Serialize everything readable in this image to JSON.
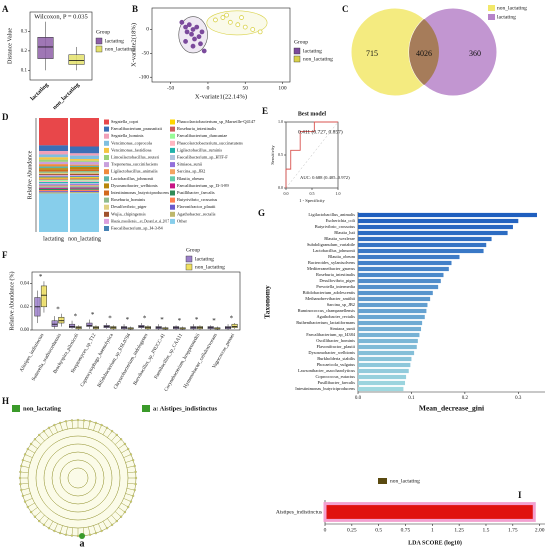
{
  "chart_data": [
    {
      "panel": "A",
      "type": "box",
      "annotation": "Wilcoxon, P = 0.035",
      "ylabel": "Distance Value",
      "legend_title": "Group",
      "categories": [
        "lactating",
        "non_lactating"
      ],
      "dodge": false,
      "ylim": [
        0.05,
        0.4
      ],
      "yticks": [
        0.1,
        0.2,
        0.3
      ],
      "series": [
        {
          "name": "lactating",
          "color": "#8e5fa8",
          "low": [
            0.1,
            null
          ],
          "q1": [
            0.16,
            null
          ],
          "median": [
            0.22,
            null
          ],
          "q3": [
            0.27,
            null
          ],
          "high": [
            0.35,
            null
          ]
        },
        {
          "name": "non_lactating",
          "color": "#e3e06a",
          "low": [
            null,
            0.1
          ],
          "q1": [
            null,
            0.13
          ],
          "median": [
            null,
            0.15
          ],
          "q3": [
            null,
            0.18
          ],
          "high": [
            null,
            0.22
          ]
        }
      ]
    },
    {
      "panel": "B",
      "type": "scatter",
      "xlabel": "X-variate1(22.14%)",
      "ylabel": "X-variate2(18%)",
      "legend_title": "Group",
      "xlim": [
        -75,
        110
      ],
      "ylim": [
        -110,
        45
      ],
      "xticks": [
        -50,
        0,
        50,
        100
      ],
      "yticks": [
        -100,
        -50,
        0
      ],
      "series": [
        {
          "name": "lactating",
          "color": "#7b4a9c",
          "x": [
            -35,
            -30,
            -28,
            -25,
            -22,
            -20,
            -18,
            -15,
            -12,
            -10,
            -8,
            -5,
            -30,
            -20
          ],
          "y": [
            15,
            5,
            -5,
            10,
            -10,
            0,
            -20,
            5,
            -15,
            -30,
            -5,
            -45,
            -25,
            -35
          ]
        },
        {
          "name": "non_lactating",
          "color": "#d9d24a",
          "x": [
            10,
            20,
            30,
            40,
            50,
            60,
            70,
            25,
            45
          ],
          "y": [
            20,
            25,
            15,
            10,
            5,
            0,
            -5,
            30,
            25
          ]
        }
      ]
    },
    {
      "panel": "C",
      "type": "venn",
      "sets": [
        {
          "name": "non_lactating",
          "color": "#f2e86a"
        },
        {
          "name": "lactating",
          "color": "#b784c9"
        }
      ],
      "values": [
        715,
        4026,
        360
      ]
    },
    {
      "panel": "D",
      "type": "stacked_bar",
      "ylabel": "Relative Abundance",
      "categories": [
        "lactating",
        "non_lactating"
      ],
      "ylim": [
        0,
        100
      ],
      "series": [
        {
          "name": "Segatella_copri",
          "color": "#e8474a",
          "values": [
            24,
            25
          ]
        },
        {
          "name": "Faecalibacterium_prausnitzii",
          "color": "#3b6fb6",
          "values": [
            5,
            6
          ]
        },
        {
          "name": "Segatella_hominis",
          "color": "#f0a0b8",
          "values": [
            3,
            2
          ]
        },
        {
          "name": "Vencimonas_coprocola",
          "color": "#7fbfe0",
          "values": [
            2.5,
            3
          ]
        },
        {
          "name": "Vencimonas_fastidiosa",
          "color": "#f5c542",
          "values": [
            2,
            1.5
          ]
        },
        {
          "name": "Limosilactobacillus_reuteri",
          "color": "#9cd17a",
          "values": [
            2,
            1
          ]
        },
        {
          "name": "Treponema_succinifaciens",
          "color": "#c9a0dc",
          "values": [
            2,
            2.5
          ]
        },
        {
          "name": "Ligilactobacillus_animalis",
          "color": "#f08a3c",
          "values": [
            2,
            1
          ]
        },
        {
          "name": "Lactobacillus_johnsonii",
          "color": "#5ab4ac",
          "values": [
            1.5,
            1
          ]
        },
        {
          "name": "Dysosmobacter_welbionis",
          "color": "#b8860b",
          "values": [
            1.5,
            2
          ]
        },
        {
          "name": "Intestinimonas_butyriciproducens",
          "color": "#d2691e",
          "values": [
            1.5,
            1.5
          ]
        },
        {
          "name": "Roseburia_hominis",
          "color": "#8fbc8f",
          "values": [
            1.2,
            1.5
          ]
        },
        {
          "name": "Desulfovibrio_piger",
          "color": "#e0d080",
          "values": [
            1,
            1
          ]
        },
        {
          "name": "Wujia_chipingensis",
          "color": "#a0522d",
          "values": [
            1,
            1
          ]
        },
        {
          "name": "Blautia_massiliensis__ex_Durand_et_al_2017",
          "color": "#dda0dd",
          "values": [
            1,
            1
          ]
        },
        {
          "name": "Faecalibacterium_sp_I4-3-84",
          "color": "#4682b4",
          "values": [
            1,
            1
          ]
        },
        {
          "name": "Phascolarctobacterium_sp_Marseille-Q4147",
          "color": "#ffd700",
          "values": [
            1,
            1
          ]
        },
        {
          "name": "Roseburia_intestinalis",
          "color": "#cd5c5c",
          "values": [
            1,
            1
          ]
        },
        {
          "name": "Faecalibacterium_duncaniae",
          "color": "#98fb98",
          "values": [
            1,
            1
          ]
        },
        {
          "name": "Phascolarctobacterium_succinatutens",
          "color": "#ffb6c1",
          "values": [
            1,
            1
          ]
        },
        {
          "name": "Ligilactobacillus_ruminis",
          "color": "#20b2aa",
          "values": [
            1,
            1
          ]
        },
        {
          "name": "Faecalibacterium_sp_HTF-F",
          "color": "#b0c4de",
          "values": [
            1,
            1
          ]
        },
        {
          "name": "Simiaoa_sunii",
          "color": "#9370db",
          "values": [
            1,
            1
          ]
        },
        {
          "name": "Sarcina_sp_JB2",
          "color": "#f4a460",
          "values": [
            1,
            1
          ]
        },
        {
          "name": "Blautia_obeum",
          "color": "#66cdaa",
          "values": [
            1,
            1
          ]
        },
        {
          "name": "Faecalibacterium_sp_I3-3-89",
          "color": "#c71585",
          "values": [
            1,
            1
          ]
        },
        {
          "name": "Pusillibacter_faecalis",
          "color": "#2e8b57",
          "values": [
            1,
            1
          ]
        },
        {
          "name": "Butyrivibrio_crossotus",
          "color": "#ff7f50",
          "values": [
            1,
            1
          ]
        },
        {
          "name": "Flavonifractor_plautii",
          "color": "#6a5acd",
          "values": [
            1,
            1
          ]
        },
        {
          "name": "Agathobacter_rectalis",
          "color": "#bdb76b",
          "values": [
            1,
            1
          ]
        },
        {
          "name": "Other",
          "color": "#87ceeb",
          "values": [
            33.8,
            34
          ]
        }
      ]
    },
    {
      "panel": "E",
      "type": "line",
      "title": "Best model",
      "xlabel": "1 - Specificity",
      "ylabel": "Sensitivity",
      "annotation": "0.411 (0.727, 0.857)",
      "auc": "AUC: 0.688 (0.405–0.972)",
      "xlim": [
        0,
        1
      ],
      "ylim": [
        0,
        1
      ],
      "xticks": [
        {
          "value": 0,
          "label": "0.0"
        },
        0.5,
        {
          "value": 1,
          "label": "1.0"
        }
      ],
      "yticks": [
        {
          "value": 0,
          "label": "0.0"
        },
        0.5,
        {
          "value": 1,
          "label": "1.0"
        }
      ],
      "color": "#d9534f",
      "x": [
        0,
        0,
        0.091,
        0.091,
        0.273,
        0.273,
        0.545,
        0.545,
        1
      ],
      "y": [
        0,
        0.286,
        0.286,
        0.571,
        0.571,
        0.857,
        0.857,
        1,
        1
      ]
    },
    {
      "panel": "F",
      "type": "box",
      "ylabel": "Relative Abundance (%)",
      "legend_title": "Group",
      "dodge": true,
      "categories": [
        "Alistipes_indistinctus",
        "Sutterella_wadsworthensis",
        "Brachyspira_pilosicoli",
        "Streptomyces_sp_T12",
        "Capnocytophaga_haemolytica",
        "Bifidobacterium_sp_ESL0704",
        "Chryseobacterium_indologenes",
        "Brevibacillus_sp_JNUCC-41",
        "Paenibacillus_sp_CAA11",
        "Corynebacterium_kroppenstedtii",
        "Hymenobacter_cellulosivorans",
        "Vagococcus_penaei"
      ],
      "significance": [
        "*",
        "*",
        "*",
        "*",
        "*",
        "*",
        "*",
        "*",
        "*",
        "*",
        "*",
        "*"
      ],
      "ylim": [
        0,
        0.05
      ],
      "yticks": [
        {
          "value": 0,
          "label": "0.00"
        },
        0.02,
        0.04
      ],
      "series": [
        {
          "name": "lactating",
          "color": "#9b7fc9",
          "low": [
            0.006,
            0.001,
            0.001,
            0.001,
            0.001,
            0,
            0.001,
            0,
            0,
            0,
            0,
            0
          ],
          "q1": [
            0.012,
            0.003,
            0.002,
            0.003,
            0.002,
            0.001,
            0.002,
            0.001,
            0.001,
            0.001,
            0.001,
            0.001
          ],
          "median": [
            0.02,
            0.005,
            0.003,
            0.004,
            0.003,
            0.002,
            0.003,
            0.002,
            0.002,
            0.002,
            0.002,
            0.002
          ],
          "q3": [
            0.028,
            0.008,
            0.005,
            0.006,
            0.004,
            0.003,
            0.004,
            0.003,
            0.003,
            0.003,
            0.003,
            0.003
          ],
          "high": [
            0.034,
            0.012,
            0.008,
            0.009,
            0.006,
            0.005,
            0.006,
            0.005,
            0.004,
            0.005,
            0.004,
            0.005
          ]
        },
        {
          "name": "non_lactating",
          "color": "#f0e060",
          "low": [
            0.015,
            0.003,
            0,
            0,
            0,
            0,
            0,
            0,
            0,
            0,
            0,
            0.001
          ],
          "q1": [
            0.02,
            0.006,
            0.001,
            0.001,
            0.001,
            0.001,
            0.001,
            0.001,
            0.001,
            0.001,
            0.001,
            0.002
          ],
          "median": [
            0.03,
            0.008,
            0.002,
            0.002,
            0.002,
            0.001,
            0.002,
            0.001,
            0.001,
            0.002,
            0.001,
            0.003
          ],
          "q3": [
            0.038,
            0.011,
            0.003,
            0.003,
            0.003,
            0.002,
            0.003,
            0.002,
            0.002,
            0.003,
            0.002,
            0.005
          ],
          "high": [
            0.042,
            0.014,
            0.004,
            0.004,
            0.004,
            0.003,
            0.004,
            0.003,
            0.003,
            0.004,
            0.003,
            0.006
          ]
        }
      ]
    },
    {
      "panel": "G",
      "type": "bar",
      "xlabel": "Mean_decrease_gini",
      "ylabel": "Taxonomy",
      "color_range": [
        "#1f5fbf",
        "#9fd8df"
      ],
      "xlim": [
        0,
        0.35
      ],
      "xticks": [
        {
          "value": 0,
          "label": "0.0"
        },
        0.1,
        0.2,
        0.3
      ],
      "categories": [
        "Ligilactobacillus_animalis",
        "Escherichia_coli",
        "Butyrivibrio_crossotus",
        "Blautia_luti",
        "Blautia_wexlerae",
        "Subdoligranulum_variabile",
        "Lactobacillus_johnsonii",
        "Blautia_obeum",
        "Bacteroides_xylanisolvens",
        "Mediterraneibacter_gnavus",
        "Roseburia_intestinalis",
        "Desulfovibrio_piger",
        "Prevotella_intermedia",
        "Bifidobacterium_adolescentis",
        "Methanobrevibacter_smithii",
        "Sarcina_sp_JB2",
        "Ruminococcus_champanellensis",
        "Agathobacter_rectalis",
        "Ruthenibacterium_lactatiformans",
        "Simiaoa_sunii",
        "Faecalibacterium_sp_I4384",
        "Oscillibacter_hominis",
        "Flavonifractor_plautii",
        "Dysosmobacter_welbionis",
        "Burkholderia_stabilis",
        "Phocaeicola_vulgatus",
        "Lawsonibacter_asaccharolyticus",
        "Coprococcus_eutactus",
        "Pusillibacter_faecalis",
        "Intestinimonas_butyriciproducens"
      ],
      "values": [
        0.335,
        0.3,
        0.29,
        0.28,
        0.25,
        0.24,
        0.235,
        0.19,
        0.175,
        0.17,
        0.16,
        0.155,
        0.15,
        0.14,
        0.135,
        0.13,
        0.128,
        0.125,
        0.12,
        0.118,
        0.115,
        0.112,
        0.11,
        0.105,
        0.1,
        0.098,
        0.095,
        0.09,
        0.088,
        0.085
      ]
    },
    {
      "panel": "H",
      "type": "cladogram",
      "color": "#3a9a2a",
      "legend": [
        "non_lactating",
        "a: Aistipes_indistinctus"
      ],
      "label": "a"
    },
    {
      "panel": "I",
      "type": "bar",
      "xlabel": "LDA SCORE (log10)",
      "xlim": [
        0,
        2.05
      ],
      "xticks": [
        0,
        0.25,
        0.5,
        0.75,
        1,
        1.25,
        1.5,
        1.75,
        {
          "value": 2,
          "label": "2.00"
        }
      ],
      "categories": [
        "Aistipes_indistinctus"
      ],
      "series": [
        {
          "name": "non_lactating",
          "color": "#e0110f",
          "values": [
            1.95
          ]
        }
      ]
    }
  ]
}
